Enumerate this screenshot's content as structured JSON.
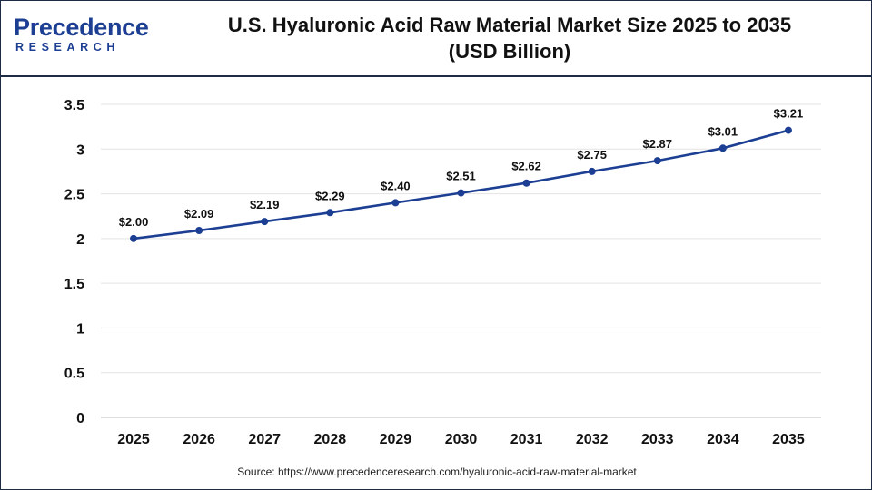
{
  "brand": {
    "name_top": "Precedence",
    "name_bottom": "RESEARCH"
  },
  "chart_title_line1": "U.S. Hyaluronic Acid Raw Material Market Size 2025 to 2035",
  "chart_title_line2": "(USD Billion)",
  "source": "Source: https://www.precedenceresearch.com/hyaluronic-acid-raw-material-market",
  "colors": {
    "line": "#1c3f94",
    "marker": "#1c3f94",
    "grid": "#e3e3e3",
    "text": "#111111"
  },
  "chart_data": {
    "type": "line",
    "title": "U.S. Hyaluronic Acid Raw Material Market Size 2025 to 2035 (USD Billion)",
    "x": [
      "2025",
      "2026",
      "2027",
      "2028",
      "2029",
      "2030",
      "2031",
      "2032",
      "2033",
      "2034",
      "2035"
    ],
    "series": [
      {
        "values": [
          2.0,
          2.09,
          2.19,
          2.29,
          2.4,
          2.51,
          2.62,
          2.75,
          2.87,
          3.01,
          3.21
        ],
        "labels": [
          "$2.00",
          "$2.09",
          "$2.19",
          "$2.29",
          "$2.40",
          "$2.51",
          "$2.62",
          "$2.75",
          "$2.87",
          "$3.01",
          "$3.21"
        ]
      }
    ],
    "ylim": [
      0,
      3.5
    ],
    "yticks": [
      0,
      0.5,
      1,
      1.5,
      2,
      2.5,
      3,
      3.5
    ],
    "ytick_labels": [
      "0",
      "0.5",
      "1",
      "1.5",
      "2",
      "2.5",
      "3",
      "3.5"
    ],
    "xlabel": "",
    "ylabel": "",
    "grid": true,
    "legend": "none"
  }
}
